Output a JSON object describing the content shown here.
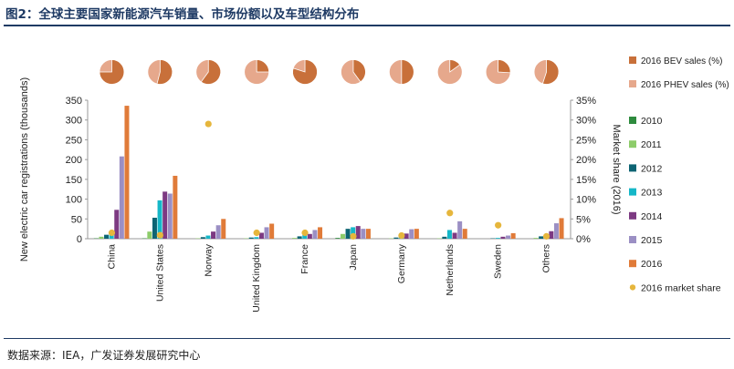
{
  "figure": {
    "title": "图2：全球主要国家新能源汽车销量、市场份额以及车型结构分布",
    "source": "数据来源：IEA，广发证券发展研究中心"
  },
  "chart_data": [
    {
      "type": "bar",
      "title": "",
      "ylabel": "New electric car registrations (thousands)",
      "y2label": "Market share (2016)",
      "ylim": [
        0,
        350
      ],
      "yticks": [
        "0",
        "50",
        "100",
        "150",
        "200",
        "250",
        "300",
        "350"
      ],
      "y2lim": [
        0,
        35
      ],
      "y2ticks": [
        "0%",
        "5%",
        "10%",
        "15%",
        "20%",
        "25%",
        "30%",
        "35%"
      ],
      "grid": false,
      "legend_position": "right",
      "categories": [
        "China",
        "United States",
        "Norway",
        "United Kingdom",
        "France",
        "Japan",
        "Germany",
        "Netherlands",
        "Sweden",
        "Others"
      ],
      "series": [
        {
          "name": "2010",
          "color": "#2e8b3e",
          "values": [
            1,
            1,
            0,
            0,
            0,
            2,
            0,
            0,
            0,
            0
          ]
        },
        {
          "name": "2011",
          "color": "#8dcc6a",
          "values": [
            5,
            18,
            1,
            1,
            2,
            12,
            1,
            1,
            0,
            2
          ]
        },
        {
          "name": "2012",
          "color": "#0d6473",
          "values": [
            10,
            53,
            4,
            3,
            6,
            25,
            3,
            5,
            1,
            6
          ]
        },
        {
          "name": "2013",
          "color": "#15b7c8",
          "values": [
            15,
            97,
            8,
            4,
            9,
            29,
            6,
            22,
            2,
            9
          ]
        },
        {
          "name": "2014",
          "color": "#7d3a82",
          "values": [
            73,
            119,
            18,
            15,
            12,
            32,
            13,
            15,
            5,
            19
          ]
        },
        {
          "name": "2015",
          "color": "#9b8fc4",
          "values": [
            208,
            114,
            34,
            29,
            22,
            25,
            24,
            44,
            8,
            39
          ]
        },
        {
          "name": "2016",
          "color": "#e07b39",
          "values": [
            336,
            159,
            50,
            38,
            29,
            25,
            25,
            25,
            14,
            52
          ]
        }
      ],
      "market_share": {
        "name": "2016 market share",
        "color": "#e6b63c",
        "values": [
          1.5,
          0.9,
          29,
          1.5,
          1.5,
          0.6,
          0.8,
          6.5,
          3.4,
          0.6
        ]
      }
    },
    {
      "type": "pie",
      "title": "",
      "legend_position": "top-right",
      "series_names": [
        "2016 BEV sales (%)",
        "2016 PHEV sales (%)"
      ],
      "colors": [
        "#c8703a",
        "#e6a88c"
      ],
      "categories": [
        "China",
        "United States",
        "Norway",
        "United Kingdom",
        "France",
        "Japan",
        "Germany",
        "Netherlands",
        "Sweden",
        "Others"
      ],
      "bev_share": [
        75,
        54,
        60,
        25,
        80,
        40,
        50,
        15,
        26,
        55
      ]
    }
  ]
}
